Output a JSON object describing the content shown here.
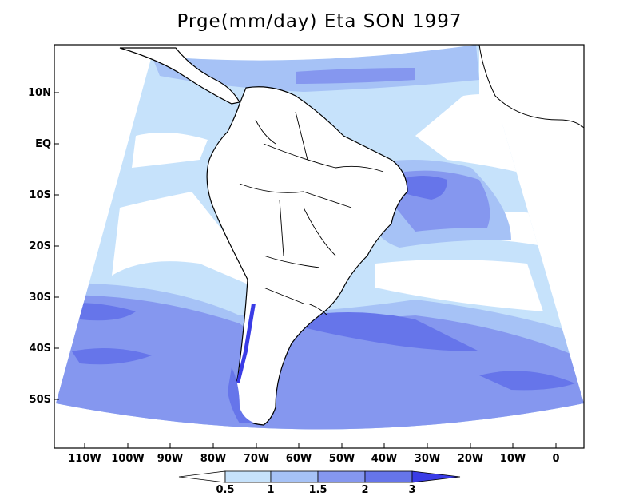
{
  "title": "Prge(mm/day) Eta SON 1997",
  "y_labels": [
    "10N",
    "EQ",
    "10S",
    "20S",
    "30S",
    "40S",
    "50S"
  ],
  "x_labels": [
    "110W",
    "100W",
    "90W",
    "80W",
    "70W",
    "60W",
    "50W",
    "40W",
    "30W",
    "20W",
    "10W",
    "0"
  ],
  "colorbar": {
    "levels": [
      "0.5",
      "1",
      "1.5",
      "2",
      "3"
    ],
    "colors": [
      "#ffffff",
      "#c6e2fb",
      "#a6c2f6",
      "#8597ef",
      "#6675ea",
      "#3a3ce6"
    ]
  },
  "map_colors": {
    "land_white": "#ffffff",
    "light": "#c6e2fb",
    "mid_light": "#a6c2f6",
    "mid": "#8597ef",
    "mid_dark": "#6675ea",
    "dark": "#3a3ce6"
  }
}
